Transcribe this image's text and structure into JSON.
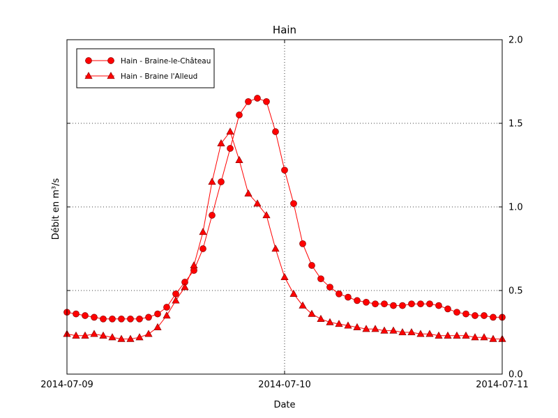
{
  "chart_data": {
    "type": "line",
    "title": "Hain",
    "xlabel": "Date",
    "ylabel": "Débit en m³/s",
    "x_unit": "hours since 2014-07-09 00:00",
    "xlim": [
      0,
      48
    ],
    "ylim": [
      0,
      2
    ],
    "grid": true,
    "legend_position": "upper left",
    "line_color": "#ff0000",
    "xticks": [
      {
        "value": 0,
        "label": "2014-07-09"
      },
      {
        "value": 24,
        "label": "2014-07-10"
      },
      {
        "value": 48,
        "label": "2014-07-11"
      }
    ],
    "yticks": [
      {
        "value": 0,
        "label": "0.0"
      },
      {
        "value": 0.5,
        "label": "0.5"
      },
      {
        "value": 1,
        "label": "1.0"
      },
      {
        "value": 1.5,
        "label": "1.5"
      },
      {
        "value": 2,
        "label": "2.0"
      }
    ],
    "series": [
      {
        "name": "Hain - Braine-le-Château",
        "marker": "circle",
        "color": "#ff0000",
        "x": [
          0,
          1,
          2,
          3,
          4,
          5,
          6,
          7,
          8,
          9,
          10,
          11,
          12,
          13,
          14,
          15,
          16,
          17,
          18,
          19,
          20,
          21,
          22,
          23,
          24,
          25,
          26,
          27,
          28,
          29,
          30,
          31,
          32,
          33,
          34,
          35,
          36,
          37,
          38,
          39,
          40,
          41,
          42,
          43,
          44,
          45,
          46,
          47,
          48
        ],
        "values": [
          0.37,
          0.36,
          0.35,
          0.34,
          0.33,
          0.33,
          0.33,
          0.33,
          0.33,
          0.34,
          0.36,
          0.4,
          0.48,
          0.55,
          0.62,
          0.75,
          0.95,
          1.15,
          1.35,
          1.55,
          1.63,
          1.65,
          1.63,
          1.45,
          1.22,
          1.02,
          0.78,
          0.65,
          0.57,
          0.52,
          0.48,
          0.46,
          0.44,
          0.43,
          0.42,
          0.42,
          0.41,
          0.41,
          0.42,
          0.42,
          0.42,
          0.41,
          0.39,
          0.37,
          0.36,
          0.35,
          0.35,
          0.34,
          0.34
        ]
      },
      {
        "name": "Hain - Braine l'Alleud",
        "marker": "triangle",
        "color": "#ff0000",
        "x": [
          0,
          1,
          2,
          3,
          4,
          5,
          6,
          7,
          8,
          9,
          10,
          11,
          12,
          13,
          14,
          15,
          16,
          17,
          18,
          19,
          20,
          21,
          22,
          23,
          24,
          25,
          26,
          27,
          28,
          29,
          30,
          31,
          32,
          33,
          34,
          35,
          36,
          37,
          38,
          39,
          40,
          41,
          42,
          43,
          44,
          45,
          46,
          47,
          48
        ],
        "values": [
          0.24,
          0.23,
          0.23,
          0.24,
          0.23,
          0.22,
          0.21,
          0.21,
          0.22,
          0.24,
          0.28,
          0.35,
          0.44,
          0.52,
          0.65,
          0.85,
          1.15,
          1.38,
          1.45,
          1.28,
          1.08,
          1.02,
          0.95,
          0.75,
          0.58,
          0.48,
          0.41,
          0.36,
          0.33,
          0.31,
          0.3,
          0.29,
          0.28,
          0.27,
          0.27,
          0.26,
          0.26,
          0.25,
          0.25,
          0.24,
          0.24,
          0.23,
          0.23,
          0.23,
          0.23,
          0.22,
          0.22,
          0.21,
          0.21
        ]
      }
    ]
  }
}
